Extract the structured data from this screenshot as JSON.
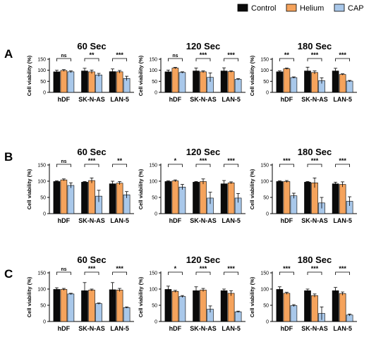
{
  "legend": [
    {
      "label": "Control",
      "color": "#0a0a0a"
    },
    {
      "label": "Helium",
      "color": "#f5a35c"
    },
    {
      "label": "CAP",
      "color": "#a9c8ea"
    }
  ],
  "colors": {
    "control": "#0a0a0a",
    "helium": "#f5a35c",
    "cap": "#a9c8ea",
    "axis": "#000000"
  },
  "chart_data": [
    {
      "type": "bar",
      "panel": "A",
      "title": "60 Sec",
      "ylabel": "Cell viability (%)",
      "ylim": [
        0,
        150
      ],
      "yticks": [
        0,
        50,
        100,
        150
      ],
      "categories": [
        "hDF",
        "SK-N-AS",
        "LAN-5"
      ],
      "series": [
        {
          "name": "Control",
          "values": [
            93,
            97,
            94
          ]
        },
        {
          "name": "Helium",
          "values": [
            99,
            93,
            93
          ]
        },
        {
          "name": "CAP",
          "values": [
            93,
            79,
            63
          ]
        }
      ],
      "errors": [
        [
          7,
          4,
          4
        ],
        [
          12,
          8,
          7
        ],
        [
          12,
          6,
          10
        ]
      ],
      "significance": [
        "ns",
        "**",
        "***"
      ]
    },
    {
      "type": "bar",
      "panel": "A",
      "title": "120 Sec",
      "ylabel": "Cell viability (%)",
      "ylim": [
        0,
        150
      ],
      "yticks": [
        0,
        50,
        100,
        150
      ],
      "categories": [
        "hDF",
        "SK-N-AS",
        "LAN-5"
      ],
      "series": [
        {
          "name": "Control",
          "values": [
            93,
            97,
            97
          ]
        },
        {
          "name": "Helium",
          "values": [
            110,
            93,
            94
          ]
        },
        {
          "name": "CAP",
          "values": [
            90,
            68,
            59
          ]
        }
      ],
      "errors": [
        [
          8,
          3,
          3
        ],
        [
          13,
          4,
          20
        ],
        [
          14,
          3,
          3
        ]
      ],
      "significance": [
        "ns",
        "***",
        "***"
      ]
    },
    {
      "type": "bar",
      "panel": "A",
      "title": "180 Sec",
      "ylabel": "Cell viability (%)",
      "ylim": [
        0,
        150
      ],
      "yticks": [
        0,
        50,
        100,
        150
      ],
      "categories": [
        "hDF",
        "SK-N-AS",
        "LAN-5"
      ],
      "series": [
        {
          "name": "Control",
          "values": [
            93,
            97,
            97
          ]
        },
        {
          "name": "Helium",
          "values": [
            107,
            90,
            81
          ]
        },
        {
          "name": "CAP",
          "values": [
            67,
            53,
            51
          ]
        }
      ],
      "errors": [
        [
          4,
          3,
          3
        ],
        [
          17,
          7,
          13
        ],
        [
          12,
          3,
          3
        ]
      ],
      "significance": [
        "**",
        "***",
        "***"
      ]
    },
    {
      "type": "bar",
      "panel": "B",
      "title": "60 Sec",
      "ylabel": "Cell viability (%)",
      "ylim": [
        0,
        150
      ],
      "yticks": [
        0,
        50,
        100,
        150
      ],
      "categories": [
        "hDF",
        "SK-N-AS",
        "LAN-5"
      ],
      "series": [
        {
          "name": "Control",
          "values": [
            99,
            97,
            92
          ]
        },
        {
          "name": "Helium",
          "values": [
            104,
            102,
            94
          ]
        },
        {
          "name": "CAP",
          "values": [
            87,
            54,
            58
          ]
        }
      ],
      "errors": [
        [
          2,
          3,
          8
        ],
        [
          2,
          8,
          18
        ],
        [
          8,
          5,
          10
        ]
      ],
      "significance": [
        "ns",
        "***",
        "**"
      ]
    },
    {
      "type": "bar",
      "panel": "B",
      "title": "120 Sec",
      "ylabel": "Cell viability (%)",
      "ylim": [
        0,
        150
      ],
      "yticks": [
        0,
        50,
        100,
        150
      ],
      "categories": [
        "hDF",
        "SK-N-AS",
        "LAN-5"
      ],
      "series": [
        {
          "name": "Control",
          "values": [
            99,
            97,
            92
          ]
        },
        {
          "name": "Helium",
          "values": [
            101,
            99,
            95
          ]
        },
        {
          "name": "CAP",
          "values": [
            82,
            48,
            48
          ]
        }
      ],
      "errors": [
        [
          2,
          3,
          8
        ],
        [
          2,
          8,
          18
        ],
        [
          10,
          3,
          14
        ]
      ],
      "significance": [
        "*",
        "***",
        "***"
      ]
    },
    {
      "type": "bar",
      "panel": "B",
      "title": "180 Sec",
      "ylabel": "Cell viability (%)",
      "ylim": [
        0,
        150
      ],
      "yticks": [
        0,
        50,
        100,
        150
      ],
      "categories": [
        "hDF",
        "SK-N-AS",
        "LAN-5"
      ],
      "series": [
        {
          "name": "Control",
          "values": [
            99,
            97,
            92
          ]
        },
        {
          "name": "Helium",
          "values": [
            99,
            95,
            90
          ]
        },
        {
          "name": "CAP",
          "values": [
            55,
            33,
            38
          ]
        }
      ],
      "errors": [
        [
          2,
          3,
          8
        ],
        [
          2,
          15,
          17
        ],
        [
          5,
          8,
          14
        ]
      ],
      "significance": [
        "***",
        "***",
        "***"
      ]
    },
    {
      "type": "bar",
      "panel": "C",
      "title": "60 Sec",
      "ylabel": "Cell viability (%)",
      "ylim": [
        0,
        150
      ],
      "yticks": [
        0,
        50,
        100,
        150
      ],
      "categories": [
        "hDF",
        "SK-N-AS",
        "LAN-5"
      ],
      "series": [
        {
          "name": "Control",
          "values": [
            99,
            95,
            98
          ]
        },
        {
          "name": "Helium",
          "values": [
            99,
            97,
            97
          ]
        },
        {
          "name": "CAP",
          "values": [
            85,
            55,
            43
          ]
        }
      ],
      "errors": [
        [
          5,
          3,
          2
        ],
        [
          25,
          3,
          2
        ],
        [
          22,
          5,
          2
        ]
      ],
      "significance": [
        "ns",
        "***",
        "***"
      ]
    },
    {
      "type": "bar",
      "panel": "C",
      "title": "120 Sec",
      "ylabel": "Cell viability (%)",
      "ylim": [
        0,
        150
      ],
      "yticks": [
        0,
        50,
        100,
        150
      ],
      "categories": [
        "hDF",
        "SK-N-AS",
        "LAN-5"
      ],
      "series": [
        {
          "name": "Control",
          "values": [
            99,
            95,
            95
          ]
        },
        {
          "name": "Helium",
          "values": [
            93,
            97,
            87
          ]
        },
        {
          "name": "CAP",
          "values": [
            77,
            38,
            30
          ]
        }
      ],
      "errors": [
        [
          10,
          3,
          3
        ],
        [
          12,
          5,
          10
        ],
        [
          5,
          8,
          2
        ]
      ],
      "significance": [
        "*",
        "***",
        "***"
      ]
    },
    {
      "type": "bar",
      "panel": "C",
      "title": "180 Sec",
      "ylabel": "Cell viability (%)",
      "ylim": [
        0,
        150
      ],
      "yticks": [
        0,
        50,
        100,
        150
      ],
      "categories": [
        "hDF",
        "SK-N-AS",
        "LAN-5"
      ],
      "series": [
        {
          "name": "Control",
          "values": [
            99,
            95,
            95
          ]
        },
        {
          "name": "Helium",
          "values": [
            87,
            80,
            86
          ]
        },
        {
          "name": "CAP",
          "values": [
            49,
            25,
            20
          ]
        }
      ],
      "errors": [
        [
          8,
          3,
          3
        ],
        [
          5,
          5,
          20
        ],
        [
          10,
          5,
          3
        ]
      ],
      "significance": [
        "***",
        "***",
        "***"
      ]
    }
  ],
  "panel_letters": [
    "A",
    "B",
    "C"
  ]
}
